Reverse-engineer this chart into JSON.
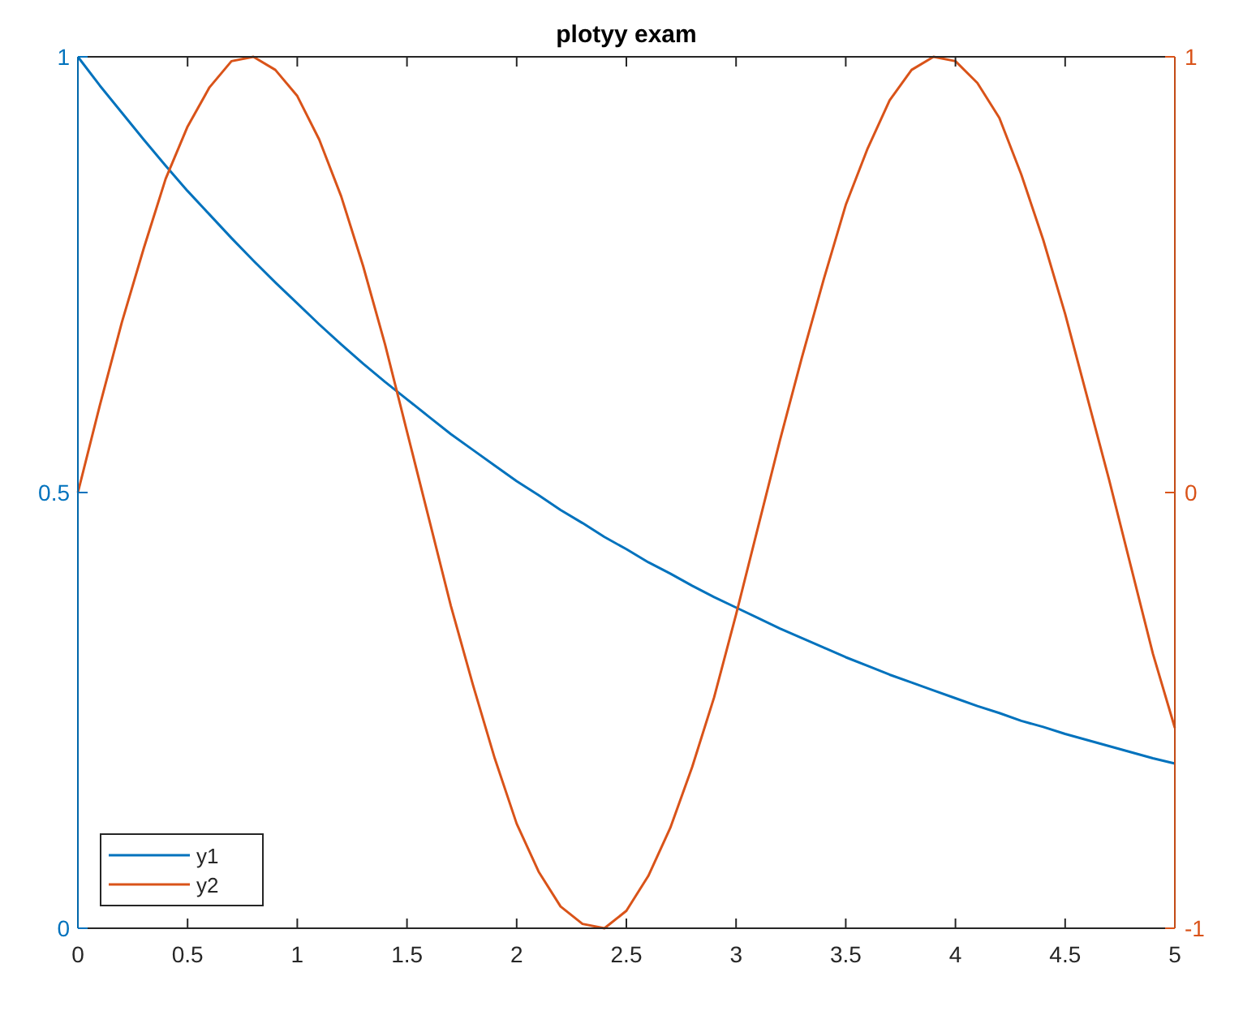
{
  "chart_data": {
    "type": "line",
    "title": "plotyy exam",
    "x": [
      0,
      0.1,
      0.2,
      0.3,
      0.4,
      0.5,
      0.6,
      0.7,
      0.8,
      0.9,
      1,
      1.1,
      1.2,
      1.3,
      1.4,
      1.5,
      1.6,
      1.7,
      1.8,
      1.9,
      2,
      2.1,
      2.2,
      2.3,
      2.4,
      2.5,
      2.6,
      2.7,
      2.8,
      2.9,
      3,
      3.1,
      3.2,
      3.3,
      3.4,
      3.5,
      3.6,
      3.7,
      3.8,
      3.9,
      4,
      4.1,
      4.2,
      4.3,
      4.4,
      4.5,
      4.6,
      4.7,
      4.8,
      4.9,
      5
    ],
    "series": [
      {
        "name": "y1",
        "color": "#0072bd",
        "values": [
          1,
          0.967,
          0.936,
          0.905,
          0.875,
          0.846,
          0.819,
          0.792,
          0.766,
          0.741,
          0.717,
          0.693,
          0.67,
          0.648,
          0.627,
          0.607,
          0.587,
          0.567,
          0.549,
          0.531,
          0.513,
          0.497,
          0.48,
          0.465,
          0.449,
          0.435,
          0.42,
          0.407,
          0.393,
          0.38,
          0.368,
          0.356,
          0.344,
          0.333,
          0.322,
          0.311,
          0.301,
          0.291,
          0.282,
          0.273,
          0.264,
          0.255,
          0.247,
          0.238,
          0.231,
          0.223,
          0.216,
          0.209,
          0.202,
          0.195,
          0.189
        ]
      },
      {
        "name": "y2",
        "color": "#d95319",
        "axis": "y2",
        "values": [
          0,
          0.2,
          0.39,
          0.56,
          0.72,
          0.84,
          0.93,
          0.99,
          1,
          0.97,
          0.91,
          0.81,
          0.68,
          0.52,
          0.34,
          0.14,
          -0.06,
          -0.26,
          -0.44,
          -0.61,
          -0.76,
          -0.87,
          -0.95,
          -0.99,
          -1,
          -0.96,
          -0.88,
          -0.77,
          -0.63,
          -0.47,
          -0.28,
          -0.08,
          0.12,
          0.31,
          0.49,
          0.66,
          0.79,
          0.9,
          0.97,
          1,
          0.99,
          0.94,
          0.86,
          0.73,
          0.58,
          0.41,
          0.22,
          0.03,
          -0.17,
          -0.37,
          -0.54
        ]
      }
    ],
    "xlim": [
      0,
      5
    ],
    "xticks": [
      0,
      0.5,
      1,
      1.5,
      2,
      2.5,
      3,
      3.5,
      4,
      4.5,
      5
    ],
    "ylim": [
      0,
      1
    ],
    "yticks": [
      0,
      0.5,
      1
    ],
    "y2lim": [
      -1,
      1
    ],
    "y2ticks": [
      -1,
      0,
      1
    ],
    "legend": "bottom left",
    "line_style": "solid"
  }
}
